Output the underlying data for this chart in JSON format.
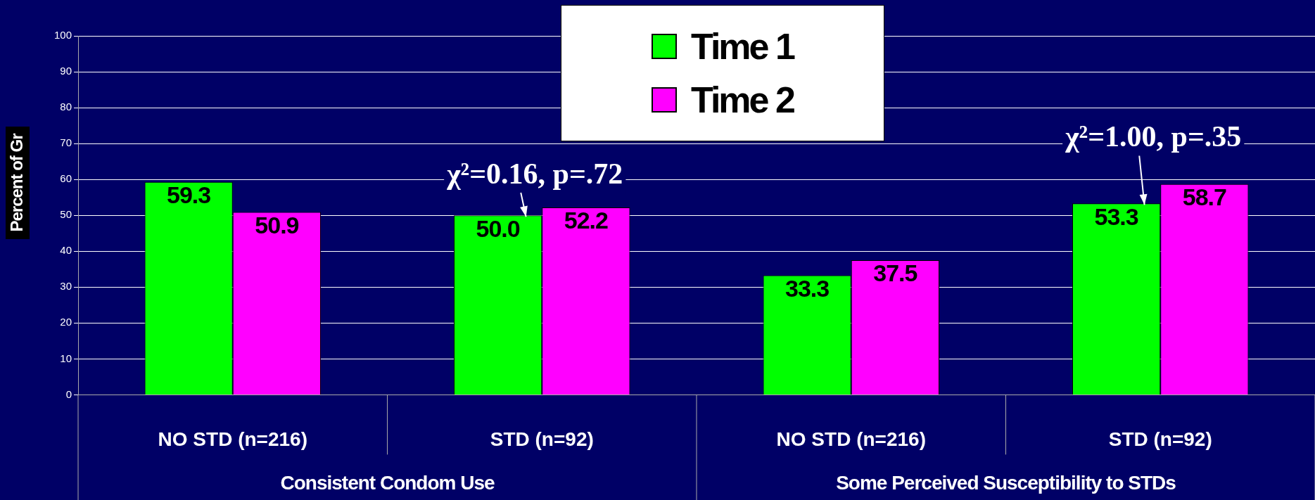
{
  "chart_data": {
    "type": "bar",
    "ylabel": "Percent of Gr",
    "categories": [
      "NO STD (n=216)",
      "STD (n=92)",
      "NO STD (n=216)",
      "STD (n=92)"
    ],
    "series": [
      {
        "name": "Time 1",
        "color": "#00ff00",
        "values": [
          59.3,
          50.0,
          33.3,
          53.3
        ],
        "value_labels": [
          "59.3",
          "50.0",
          "33.3",
          "53.3"
        ]
      },
      {
        "name": "Time 2",
        "color": "#ff00ff",
        "values": [
          50.9,
          52.2,
          37.5,
          58.7
        ],
        "value_labels": [
          "50.9",
          "52.2",
          "37.5",
          "58.7"
        ]
      }
    ],
    "annotations": [
      "Consistent Condom Use",
      "Some Perceived Susceptibility to STDs",
      {
        "text": "χ²=0.16, p=.72",
        "y": 50.0
      },
      {
        "text": "χ²=1.00, p=.35",
        "y": 53.3
      }
    ],
    "ylim": [
      0,
      100
    ],
    "yticks": [
      0,
      10,
      20,
      30,
      40,
      50,
      60,
      70,
      80,
      90,
      100
    ],
    "grid": "y",
    "legend": "top"
  }
}
